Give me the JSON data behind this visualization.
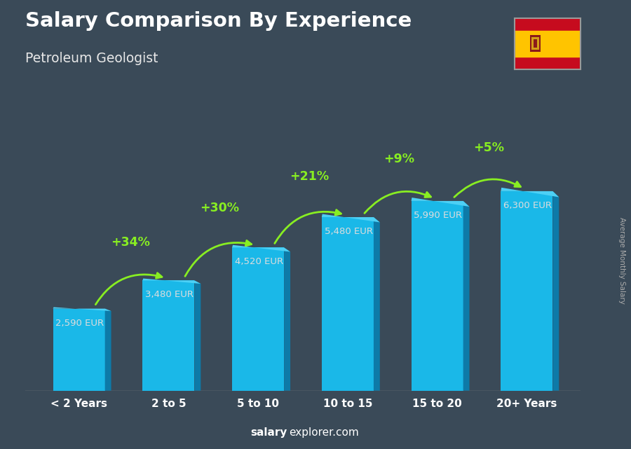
{
  "title": "Salary Comparison By Experience",
  "subtitle": "Petroleum Geologist",
  "categories": [
    "< 2 Years",
    "2 to 5",
    "5 to 10",
    "10 to 15",
    "15 to 20",
    "20+ Years"
  ],
  "values": [
    2590,
    3480,
    4520,
    5480,
    5990,
    6300
  ],
  "value_labels": [
    "2,590 EUR",
    "3,480 EUR",
    "4,520 EUR",
    "5,480 EUR",
    "5,990 EUR",
    "6,300 EUR"
  ],
  "pct_labels": [
    "+34%",
    "+30%",
    "+21%",
    "+9%",
    "+5%"
  ],
  "bar_color_main": "#1ab8e8",
  "bar_color_light": "#4dd0f5",
  "bar_color_dark": "#0e8bbf",
  "bar_color_right": "#0d7aa8",
  "pct_color": "#88ee22",
  "title_color": "#ffffff",
  "subtitle_color": "#e8e8e8",
  "value_color": "#dddddd",
  "xticklabel_color": "#ffffff",
  "bg_color": "#3a4a58",
  "ylabel_text": "Average Monthly Salary",
  "footer_salary": "salary",
  "footer_rest": "explorer.com",
  "ylim": [
    0,
    7800
  ]
}
